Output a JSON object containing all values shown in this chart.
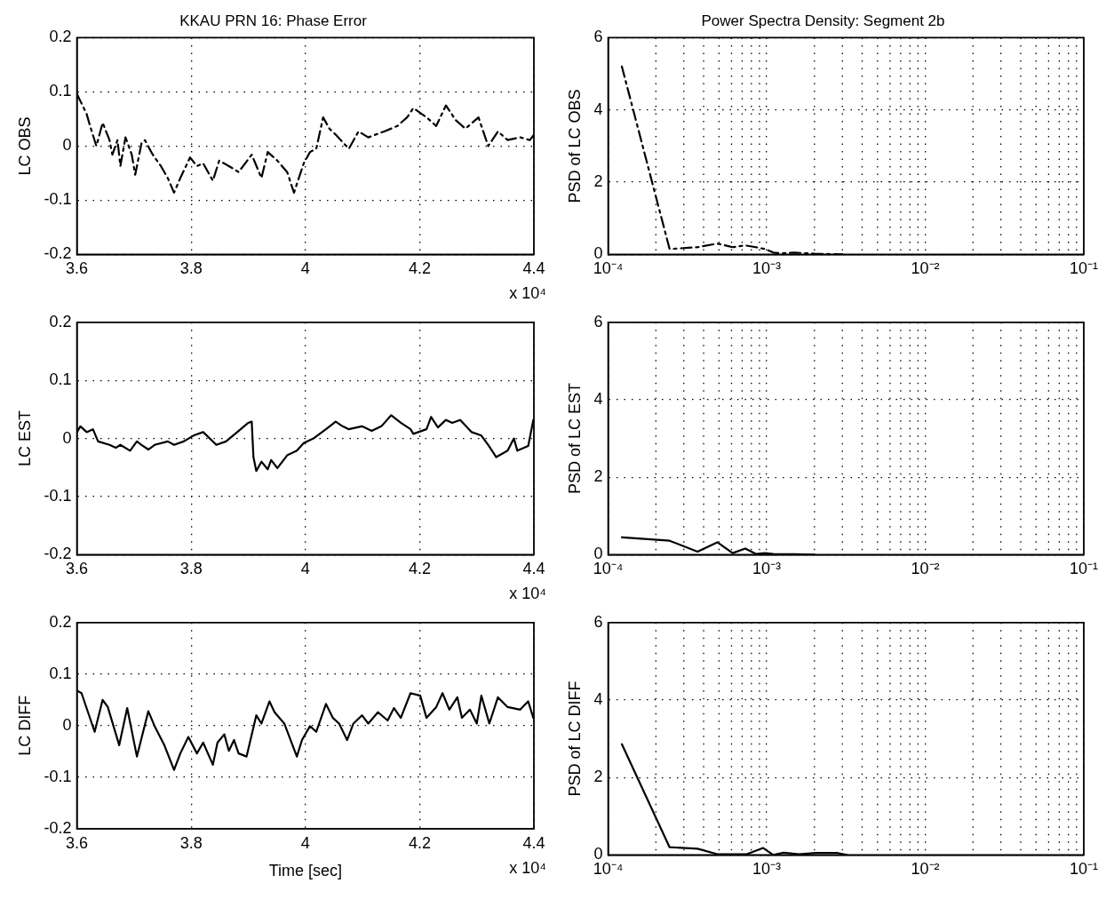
{
  "chart_data": [
    {
      "type": "line",
      "title": "KKAU PRN 16: Phase Error",
      "ylabel": "LC OBS",
      "annotations": [
        "x 10⁴"
      ],
      "xlim": [
        3.6,
        4.4
      ],
      "xticks": [
        3.6,
        3.8,
        4,
        4.2,
        4.4
      ],
      "ylim": [
        -0.2,
        0.2
      ],
      "yticks": [
        -0.2,
        -0.1,
        0,
        0.1,
        0.2
      ],
      "grid": true,
      "x": [
        3.6,
        3.617,
        3.623,
        3.634,
        3.645,
        3.657,
        3.662,
        3.671,
        3.676,
        3.685,
        3.696,
        3.702,
        3.713,
        3.719,
        3.73,
        3.736,
        3.747,
        3.759,
        3.77,
        3.781,
        3.798,
        3.81,
        3.821,
        3.838,
        3.849,
        3.866,
        3.883,
        3.906,
        3.923,
        3.934,
        3.951,
        3.968,
        3.98,
        3.997,
        4.008,
        4.019,
        4.031,
        4.042,
        4.053,
        4.076,
        4.093,
        4.11,
        4.138,
        4.161,
        4.178,
        4.189,
        4.212,
        4.229,
        4.246,
        4.263,
        4.28,
        4.303,
        4.32,
        4.337,
        4.354,
        4.376,
        4.393,
        4.4
      ],
      "series": [
        {
          "color": "#000000",
          "line_style": "dashed",
          "values": [
            0.096,
            0.059,
            0.037,
            0,
            0.043,
            0.011,
            -0.016,
            0.011,
            -0.037,
            0.016,
            -0.016,
            -0.053,
            0.005,
            0.011,
            -0.011,
            -0.021,
            -0.037,
            -0.059,
            -0.086,
            -0.059,
            -0.021,
            -0.037,
            -0.032,
            -0.064,
            -0.027,
            -0.037,
            -0.048,
            -0.016,
            -0.059,
            -0.011,
            -0.027,
            -0.048,
            -0.086,
            -0.032,
            -0.011,
            -0.005,
            0.053,
            0.032,
            0.021,
            -0.005,
            0.027,
            0.016,
            0.027,
            0.037,
            0.053,
            0.07,
            0.053,
            0.037,
            0.075,
            0.048,
            0.032,
            0.053,
            0,
            0.027,
            0.011,
            0.016,
            0.011,
            0.021
          ]
        }
      ]
    },
    {
      "type": "line",
      "title": "Power Spectra Density: Segment 2b",
      "ylabel": "PSD of LC OBS",
      "log": "x",
      "xlim": [
        0.0001,
        0.1
      ],
      "xticks": [
        {
          "value": 0.0001,
          "label": "10⁻⁴"
        },
        {
          "value": 0.001,
          "label": "10⁻³"
        },
        {
          "value": 0.01,
          "label": "10⁻²"
        },
        {
          "value": 0.1,
          "label": "10⁻¹"
        }
      ],
      "ylim": [
        0,
        6
      ],
      "yticks": [
        0,
        2,
        4,
        6
      ],
      "grid": true,
      "x": [
        0.000122,
        0.000244,
        0.000366,
        0.000488,
        0.00061,
        0.000732,
        0.000854,
        0.000976,
        0.0011,
        0.00122,
        0.0015,
        0.002,
        0.003
      ],
      "series": [
        {
          "color": "#000000",
          "line_style": "dashed",
          "values": [
            5.2,
            0.15,
            0.2,
            0.3,
            0.2,
            0.25,
            0.2,
            0.15,
            0.05,
            0.03,
            0.05,
            0.02,
            0
          ]
        }
      ]
    },
    {
      "type": "line",
      "ylabel": "LC EST",
      "annotations": [
        "x 10⁴"
      ],
      "xlim": [
        3.6,
        4.4
      ],
      "xticks": [
        3.6,
        3.8,
        4,
        4.2,
        4.4
      ],
      "ylim": [
        -0.2,
        0.2
      ],
      "yticks": [
        -0.2,
        -0.1,
        0,
        0.1,
        0.2
      ],
      "grid": true,
      "x": [
        3.6,
        3.606,
        3.617,
        3.628,
        3.637,
        3.657,
        3.668,
        3.676,
        3.693,
        3.705,
        3.713,
        3.725,
        3.736,
        3.759,
        3.77,
        3.787,
        3.804,
        3.821,
        3.844,
        3.861,
        3.883,
        3.9,
        3.906,
        3.909,
        3.914,
        3.923,
        3.934,
        3.94,
        3.951,
        3.968,
        3.985,
        3.997,
        4.014,
        4.036,
        4.053,
        4.065,
        4.076,
        4.099,
        4.116,
        4.133,
        4.15,
        4.167,
        4.184,
        4.189,
        4.212,
        4.22,
        4.232,
        4.246,
        4.257,
        4.271,
        4.291,
        4.308,
        4.32,
        4.334,
        4.354,
        4.365,
        4.371,
        4.39,
        4.399
      ],
      "series": [
        {
          "color": "#000000",
          "line_style": "solid",
          "values": [
            0.011,
            0.021,
            0.011,
            0.016,
            -0.005,
            -0.011,
            -0.016,
            -0.011,
            -0.021,
            -0.005,
            -0.011,
            -0.019,
            -0.011,
            -0.005,
            -0.011,
            -0.005,
            0.005,
            0.011,
            -0.011,
            -0.005,
            0.013,
            0.027,
            0.029,
            -0.032,
            -0.056,
            -0.04,
            -0.053,
            -0.037,
            -0.051,
            -0.029,
            -0.021,
            -0.008,
            0,
            0.016,
            0.029,
            0.021,
            0.016,
            0.021,
            0.013,
            0.021,
            0.04,
            0.027,
            0.016,
            0.008,
            0.016,
            0.037,
            0.019,
            0.032,
            0.027,
            0.032,
            0.011,
            0.005,
            -0.011,
            -0.032,
            -0.021,
            0,
            -0.021,
            -0.013,
            0.032
          ]
        }
      ]
    },
    {
      "type": "line",
      "ylabel": "PSD of LC EST",
      "log": "x",
      "xlim": [
        0.0001,
        0.1
      ],
      "xticks": [
        {
          "value": 0.0001,
          "label": "10⁻⁴"
        },
        {
          "value": 0.001,
          "label": "10⁻³"
        },
        {
          "value": 0.01,
          "label": "10⁻²"
        },
        {
          "value": 0.1,
          "label": "10⁻¹"
        }
      ],
      "ylim": [
        0,
        6
      ],
      "yticks": [
        0,
        2,
        4,
        6
      ],
      "grid": true,
      "x": [
        0.000122,
        0.000244,
        0.000366,
        0.000488,
        0.00061,
        0.000732,
        0.000854,
        0.000976,
        0.0011,
        0.0015,
        0.002
      ],
      "series": [
        {
          "color": "#000000",
          "line_style": "solid",
          "values": [
            0.45,
            0.36,
            0.08,
            0.32,
            0.04,
            0.16,
            0.02,
            0.04,
            0.02,
            0.01,
            0
          ]
        }
      ]
    },
    {
      "type": "line",
      "ylabel": "LC DIFF",
      "xlabel": "Time [sec]",
      "annotations": [
        "x 10⁴"
      ],
      "xlim": [
        3.6,
        4.4
      ],
      "xticks": [
        3.6,
        3.8,
        4,
        4.2,
        4.4
      ],
      "ylim": [
        -0.2,
        0.2
      ],
      "yticks": [
        -0.2,
        -0.1,
        0,
        0.1,
        0.2
      ],
      "grid": true,
      "x": [
        3.6,
        3.608,
        3.631,
        3.645,
        3.654,
        3.674,
        3.688,
        3.705,
        3.725,
        3.736,
        3.753,
        3.77,
        3.781,
        3.795,
        3.81,
        3.821,
        3.838,
        3.846,
        3.858,
        3.866,
        3.875,
        3.883,
        3.897,
        3.914,
        3.923,
        3.937,
        3.946,
        3.963,
        3.985,
        3.994,
        4.008,
        4.019,
        4.036,
        4.048,
        4.059,
        4.073,
        4.084,
        4.099,
        4.11,
        4.127,
        4.144,
        4.155,
        4.167,
        4.184,
        4.201,
        4.212,
        4.229,
        4.24,
        4.252,
        4.266,
        4.274,
        4.288,
        4.3,
        4.308,
        4.322,
        4.337,
        4.354,
        4.376,
        4.39,
        4.399
      ],
      "series": [
        {
          "color": "#000000",
          "line_style": "solid",
          "values": [
            0.068,
            0.063,
            -0.012,
            0.05,
            0.036,
            -0.038,
            0.034,
            -0.06,
            0.028,
            -0.001,
            -0.038,
            -0.086,
            -0.054,
            -0.022,
            -0.054,
            -0.033,
            -0.076,
            -0.033,
            -0.017,
            -0.049,
            -0.028,
            -0.054,
            -0.06,
            0.02,
            0.004,
            0.047,
            0.026,
            0.004,
            -0.06,
            -0.028,
            -0.001,
            -0.012,
            0.042,
            0.015,
            0.004,
            -0.028,
            0.004,
            0.02,
            0.004,
            0.026,
            0.01,
            0.034,
            0.015,
            0.063,
            0.058,
            0.015,
            0.036,
            0.063,
            0.031,
            0.055,
            0.015,
            0.031,
            0.004,
            0.058,
            0.004,
            0.055,
            0.036,
            0.031,
            0.047,
            0.015
          ]
        }
      ]
    },
    {
      "type": "line",
      "ylabel": "PSD of LC DIFF",
      "log": "x",
      "xlim": [
        0.0001,
        0.1
      ],
      "xticks": [
        {
          "value": 0.0001,
          "label": "10⁻⁴"
        },
        {
          "value": 0.001,
          "label": "10⁻³"
        },
        {
          "value": 0.01,
          "label": "10⁻²"
        },
        {
          "value": 0.1,
          "label": "10⁻¹"
        }
      ],
      "ylim": [
        0,
        6
      ],
      "yticks": [
        0,
        2,
        4,
        6
      ],
      "grid": true,
      "x": [
        0.000122,
        0.000244,
        0.000366,
        0.000488,
        0.00075,
        0.00095,
        0.0011,
        0.00128,
        0.0016,
        0.00205,
        0.0028,
        0.0032
      ],
      "series": [
        {
          "color": "#000000",
          "line_style": "solid",
          "values": [
            2.86,
            0.2,
            0.16,
            0.02,
            0.02,
            0.18,
            0,
            0.06,
            0.02,
            0.05,
            0.05,
            0
          ]
        }
      ]
    }
  ]
}
